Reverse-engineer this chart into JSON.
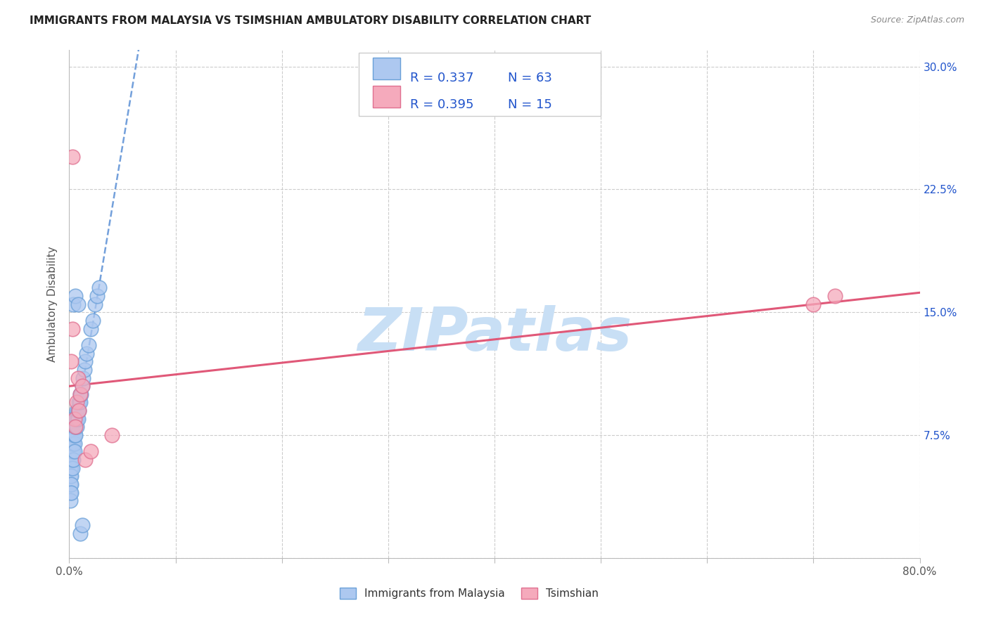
{
  "title": "IMMIGRANTS FROM MALAYSIA VS TSIMSHIAN AMBULATORY DISABILITY CORRELATION CHART",
  "source": "Source: ZipAtlas.com",
  "ylabel": "Ambulatory Disability",
  "xlim": [
    0.0,
    0.8
  ],
  "ylim": [
    0.0,
    0.31
  ],
  "background_color": "#ffffff",
  "malaysia_face_color": "#adc8f0",
  "malaysia_edge_color": "#6aa0d8",
  "tsimshian_face_color": "#f5aabc",
  "tsimshian_edge_color": "#e07090",
  "malaysia_line_color": "#5b8fd5",
  "tsimshian_line_color": "#e05878",
  "grid_color": "#cccccc",
  "R_text_color": "#2255cc",
  "N_text_color": "#2255cc",
  "legend_edge_color": "#cccccc",
  "watermark_color": "#c8dff5",
  "malaysia_x": [
    0.001,
    0.001,
    0.001,
    0.001,
    0.001,
    0.001,
    0.001,
    0.001,
    0.001,
    0.001,
    0.002,
    0.002,
    0.002,
    0.002,
    0.002,
    0.002,
    0.002,
    0.002,
    0.003,
    0.003,
    0.003,
    0.003,
    0.003,
    0.003,
    0.003,
    0.004,
    0.004,
    0.004,
    0.004,
    0.004,
    0.005,
    0.005,
    0.005,
    0.005,
    0.006,
    0.006,
    0.006,
    0.007,
    0.007,
    0.007,
    0.008,
    0.008,
    0.009,
    0.009,
    0.01,
    0.01,
    0.011,
    0.012,
    0.013,
    0.014,
    0.015,
    0.016,
    0.018,
    0.02,
    0.022,
    0.024,
    0.026,
    0.028,
    0.004,
    0.006,
    0.008,
    0.01,
    0.012
  ],
  "malaysia_y": [
    0.055,
    0.06,
    0.065,
    0.07,
    0.075,
    0.08,
    0.05,
    0.045,
    0.04,
    0.035,
    0.055,
    0.06,
    0.065,
    0.07,
    0.075,
    0.05,
    0.045,
    0.04,
    0.06,
    0.065,
    0.07,
    0.075,
    0.08,
    0.085,
    0.055,
    0.065,
    0.07,
    0.075,
    0.08,
    0.06,
    0.07,
    0.075,
    0.08,
    0.065,
    0.075,
    0.08,
    0.085,
    0.08,
    0.085,
    0.09,
    0.085,
    0.09,
    0.09,
    0.095,
    0.095,
    0.1,
    0.1,
    0.105,
    0.11,
    0.115,
    0.12,
    0.125,
    0.13,
    0.14,
    0.145,
    0.155,
    0.16,
    0.165,
    0.155,
    0.16,
    0.155,
    0.015,
    0.02
  ],
  "tsimshian_x": [
    0.002,
    0.003,
    0.005,
    0.007,
    0.008,
    0.009,
    0.01,
    0.012,
    0.015,
    0.04,
    0.7,
    0.72,
    0.003,
    0.006,
    0.02
  ],
  "tsimshian_y": [
    0.12,
    0.245,
    0.085,
    0.095,
    0.11,
    0.09,
    0.1,
    0.105,
    0.06,
    0.075,
    0.155,
    0.16,
    0.14,
    0.08,
    0.065
  ]
}
